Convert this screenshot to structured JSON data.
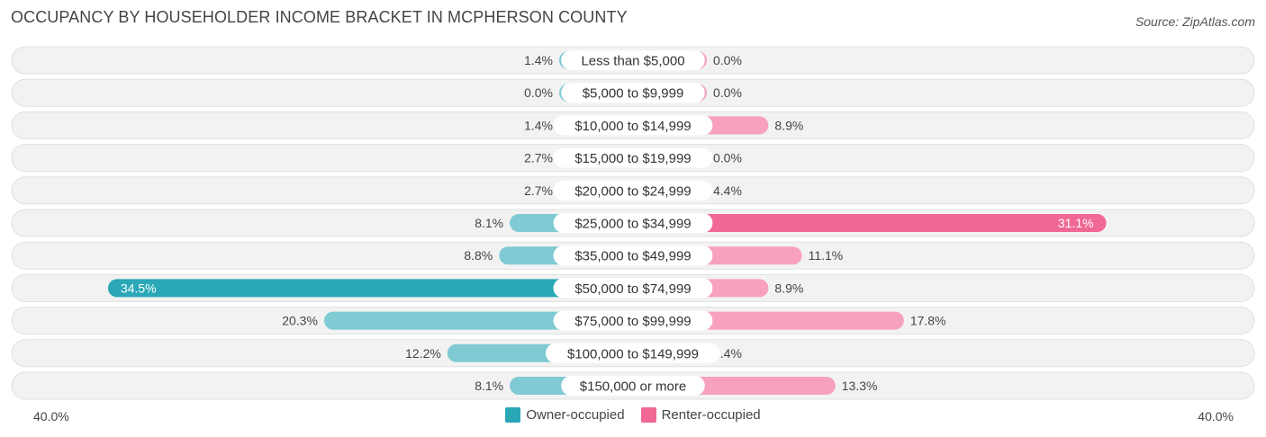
{
  "header": {
    "title": "OCCUPANCY BY HOUSEHOLDER INCOME BRACKET IN MCPHERSON COUNTY",
    "source": "Source: ZipAtlas.com"
  },
  "axis": {
    "left_label": "40.0%",
    "right_label": "40.0%"
  },
  "legend": {
    "owner_label": "Owner-occupied",
    "renter_label": "Renter-occupied"
  },
  "colors": {
    "owner": "#7fcad3",
    "owner_strong": "#2aa8b8",
    "renter": "#f7a1bd",
    "renter_strong": "#f06893",
    "row_bg": "#f0f0f0",
    "row_border": "#e0e0e0"
  },
  "chart_data": {
    "type": "bar",
    "orientation": "horizontal-diverging",
    "categories": [
      "Less than $5,000",
      "$5,000 to $9,999",
      "$10,000 to $14,999",
      "$15,000 to $19,999",
      "$20,000 to $24,999",
      "$25,000 to $34,999",
      "$35,000 to $49,999",
      "$50,000 to $74,999",
      "$75,000 to $99,999",
      "$100,000 to $149,999",
      "$150,000 or more"
    ],
    "series": [
      {
        "name": "Owner-occupied",
        "values": [
          1.4,
          0.0,
          1.4,
          2.7,
          2.7,
          8.1,
          8.8,
          34.5,
          20.3,
          12.2,
          8.1
        ],
        "labels": [
          "1.4%",
          "0.0%",
          "1.4%",
          "2.7%",
          "2.7%",
          "8.1%",
          "8.8%",
          "34.5%",
          "20.3%",
          "12.2%",
          "8.1%"
        ]
      },
      {
        "name": "Renter-occupied",
        "values": [
          0.0,
          0.0,
          8.9,
          0.0,
          4.4,
          31.1,
          11.1,
          8.9,
          17.8,
          4.4,
          13.3
        ],
        "labels": [
          "0.0%",
          "0.0%",
          "8.9%",
          "0.0%",
          "4.4%",
          "31.1%",
          "11.1%",
          "8.9%",
          "17.8%",
          "4.4%",
          "13.3%"
        ]
      }
    ],
    "xlim": [
      -40,
      40
    ],
    "legend_position": "bottom-center",
    "grid": false
  }
}
